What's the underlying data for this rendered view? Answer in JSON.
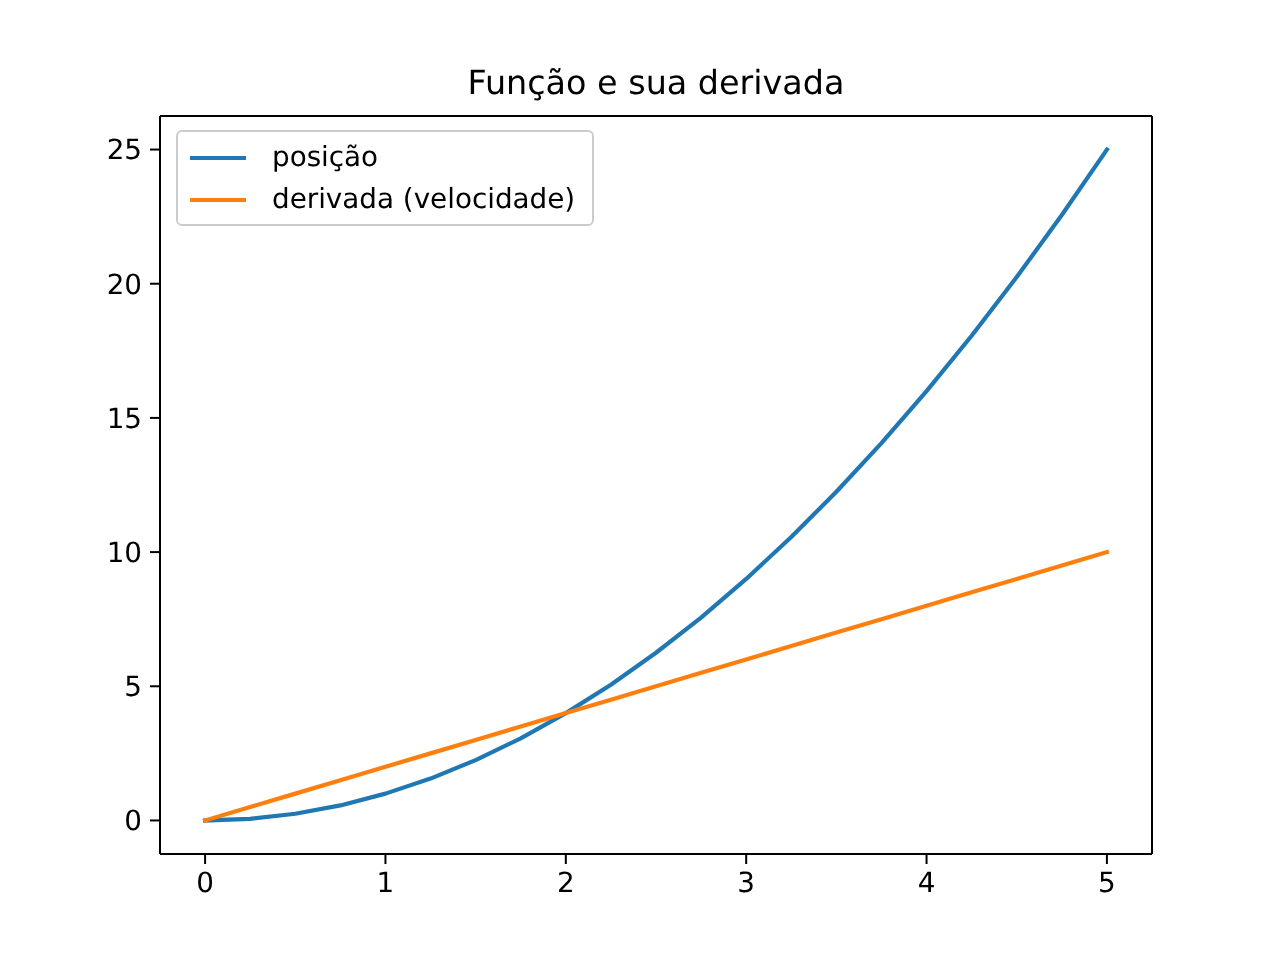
{
  "chart_data": {
    "type": "line",
    "title": "Função e sua derivada",
    "x": [
      0,
      0.25,
      0.5,
      0.75,
      1,
      1.25,
      1.5,
      1.75,
      2,
      2.25,
      2.5,
      2.75,
      3,
      3.25,
      3.5,
      3.75,
      4,
      4.25,
      4.5,
      4.75,
      5
    ],
    "series": [
      {
        "name": "posição",
        "color": "#1f77b4",
        "values": [
          0,
          0.06,
          0.25,
          0.56,
          1,
          1.56,
          2.25,
          3.06,
          4,
          5.06,
          6.25,
          7.56,
          9,
          10.56,
          12.25,
          14.06,
          16,
          18.06,
          20.25,
          22.56,
          25
        ]
      },
      {
        "name": "derivada (velocidade)",
        "color": "#ff7f0e",
        "values": [
          0,
          0.5,
          1,
          1.5,
          2,
          2.5,
          3,
          3.5,
          4,
          4.5,
          5,
          5.5,
          6,
          6.5,
          7,
          7.5,
          8,
          8.5,
          9,
          9.5,
          10
        ]
      }
    ],
    "xlim": [
      -0.25,
      5.25
    ],
    "xticks": [
      0,
      1,
      2,
      3,
      4,
      5
    ],
    "ylim": [
      -1.25,
      26.25
    ],
    "yticks": [
      0,
      5,
      10,
      15,
      20,
      25
    ],
    "legend": "top left",
    "marker": "none",
    "line_style": "solid"
  }
}
